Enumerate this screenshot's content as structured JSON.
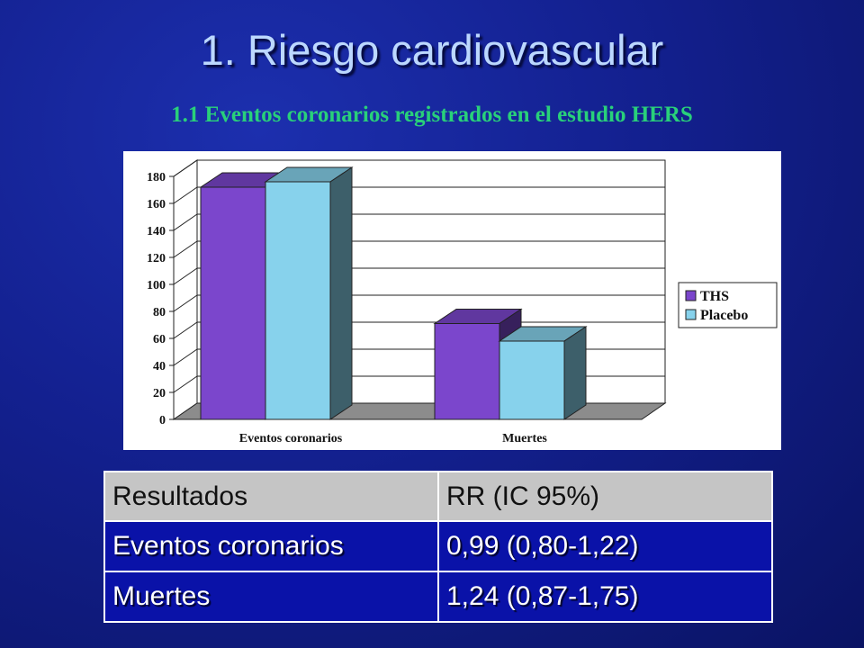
{
  "slide": {
    "title": "1. Riesgo cardiovascular",
    "subtitle": "1.1 Eventos coronarios registrados en el estudio HERS"
  },
  "chart_data": {
    "type": "bar",
    "categories": [
      "Eventos coronarios",
      "Muertes"
    ],
    "series": [
      {
        "name": "THS",
        "values": [
          172,
          71
        ],
        "color": "#7b46cc"
      },
      {
        "name": "Placebo",
        "values": [
          176,
          58
        ],
        "color": "#87d2ec"
      }
    ],
    "ylim": [
      0,
      180
    ],
    "yticks": [
      "0",
      "20",
      "40",
      "60",
      "80",
      "100",
      "120",
      "140",
      "160",
      "180"
    ],
    "grid": true,
    "legend_position": "right",
    "three_d": true
  },
  "results_table": {
    "header": [
      "Resultados",
      "RR (IC 95%)"
    ],
    "rows": [
      [
        "Eventos coronarios",
        "0,99 (0,80-1,22)"
      ],
      [
        "Muertes",
        "1,24 (0,87-1,75)"
      ]
    ]
  }
}
